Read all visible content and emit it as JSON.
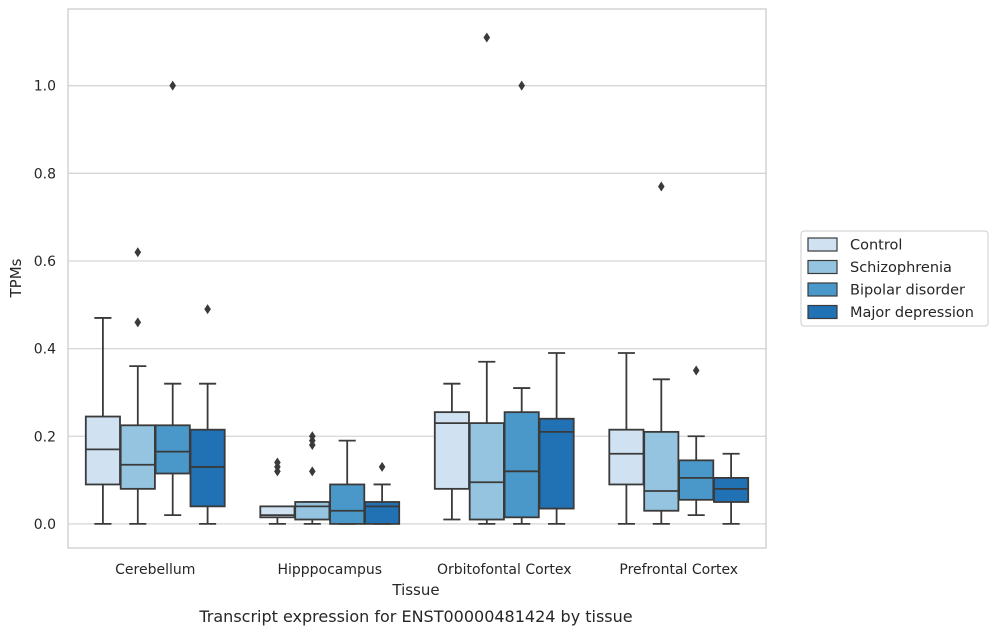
{
  "caption": "Transcript expression for ENST00000481424 by tissue",
  "chart_data": {
    "type": "box",
    "xlabel": "Tissue",
    "ylabel": "TPMs",
    "ylim": [
      -0.055,
      1.175
    ],
    "yticks": [
      0.0,
      0.2,
      0.4,
      0.6,
      0.8,
      1.0
    ],
    "ytick_labels": [
      "0.0",
      "0.2",
      "0.4",
      "0.6",
      "0.8",
      "1.0"
    ],
    "grid": "horizontal",
    "legend_position": "right",
    "categories": [
      "Cerebellum",
      "Hipppocampus",
      "Orbitofontal Cortex",
      "Prefrontal Cortex"
    ],
    "series": [
      {
        "name": "Control",
        "color": "#d0e2f2",
        "boxes": [
          {
            "whislo": 0.0,
            "q1": 0.09,
            "med": 0.17,
            "q3": 0.245,
            "whishi": 0.47,
            "fliers": []
          },
          {
            "whislo": 0.0,
            "q1": 0.015,
            "med": 0.02,
            "q3": 0.04,
            "whishi": 0.04,
            "fliers": [
              0.12,
              0.13,
              0.14
            ]
          },
          {
            "whislo": 0.01,
            "q1": 0.08,
            "med": 0.23,
            "q3": 0.255,
            "whishi": 0.32,
            "fliers": []
          },
          {
            "whislo": 0.0,
            "q1": 0.09,
            "med": 0.16,
            "q3": 0.215,
            "whishi": 0.39,
            "fliers": []
          }
        ]
      },
      {
        "name": "Schizophrenia",
        "color": "#94c4df",
        "boxes": [
          {
            "whislo": 0.0,
            "q1": 0.08,
            "med": 0.135,
            "q3": 0.225,
            "whishi": 0.36,
            "fliers": [
              0.46,
              0.62
            ]
          },
          {
            "whislo": 0.0,
            "q1": 0.01,
            "med": 0.04,
            "q3": 0.05,
            "whishi": 0.05,
            "fliers": [
              0.12,
              0.18,
              0.19,
              0.2
            ]
          },
          {
            "whislo": 0.0,
            "q1": 0.01,
            "med": 0.095,
            "q3": 0.23,
            "whishi": 0.37,
            "fliers": [
              1.11
            ]
          },
          {
            "whislo": 0.0,
            "q1": 0.03,
            "med": 0.075,
            "q3": 0.21,
            "whishi": 0.33,
            "fliers": [
              0.77
            ]
          }
        ]
      },
      {
        "name": "Bipolar disorder",
        "color": "#4a98c9",
        "boxes": [
          {
            "whislo": 0.02,
            "q1": 0.115,
            "med": 0.165,
            "q3": 0.225,
            "whishi": 0.32,
            "fliers": [
              1.0
            ]
          },
          {
            "whislo": 0.0,
            "q1": 0.0,
            "med": 0.03,
            "q3": 0.09,
            "whishi": 0.19,
            "fliers": []
          },
          {
            "whislo": 0.0,
            "q1": 0.015,
            "med": 0.12,
            "q3": 0.255,
            "whishi": 0.31,
            "fliers": [
              1.0
            ]
          },
          {
            "whislo": 0.02,
            "q1": 0.055,
            "med": 0.105,
            "q3": 0.145,
            "whishi": 0.2,
            "fliers": [
              0.35
            ]
          }
        ]
      },
      {
        "name": "Major depression",
        "color": "#2171b5",
        "boxes": [
          {
            "whislo": 0.0,
            "q1": 0.04,
            "med": 0.13,
            "q3": 0.215,
            "whishi": 0.32,
            "fliers": [
              0.49
            ]
          },
          {
            "whislo": 0.0,
            "q1": 0.0,
            "med": 0.04,
            "q3": 0.05,
            "whishi": 0.09,
            "fliers": [
              0.13
            ]
          },
          {
            "whislo": 0.0,
            "q1": 0.035,
            "med": 0.21,
            "q3": 0.24,
            "whishi": 0.39,
            "fliers": []
          },
          {
            "whislo": 0.0,
            "q1": 0.05,
            "med": 0.08,
            "q3": 0.105,
            "whishi": 0.16,
            "fliers": []
          }
        ]
      }
    ]
  }
}
